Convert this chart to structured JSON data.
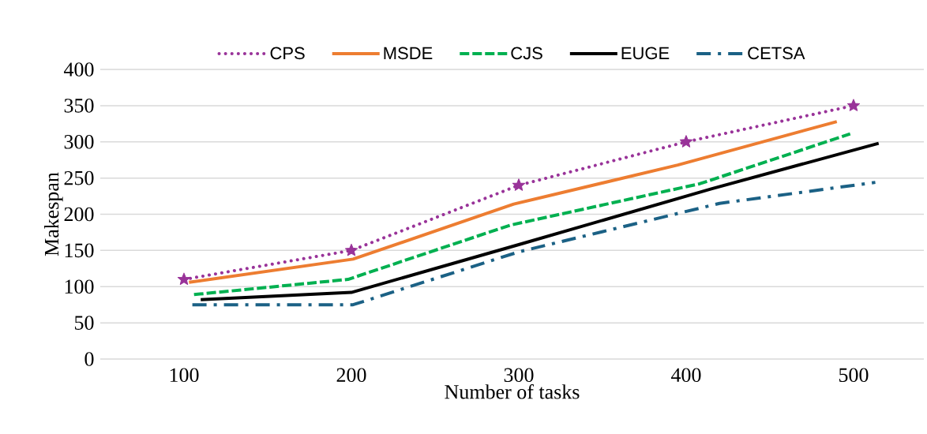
{
  "chart_data": {
    "type": "line",
    "xlabel": "Number of tasks",
    "ylabel": "Makespan",
    "xlim": [
      50,
      542
    ],
    "xticks": [
      100,
      200,
      300,
      400,
      500
    ],
    "ylim": [
      0,
      400
    ],
    "yticks": [
      0,
      50,
      100,
      150,
      200,
      250,
      300,
      350,
      400
    ],
    "grid": "y",
    "legend": "top",
    "series": [
      {
        "name": "CPS",
        "color": "#993399",
        "marker": "star",
        "line_style": "dotted",
        "x": [
          100,
          200,
          300,
          400,
          500
        ],
        "values": [
          110,
          150,
          240,
          300,
          350
        ]
      },
      {
        "name": "MSDE",
        "color": "#ed7d31",
        "line_style": "solid",
        "x": [
          103,
          201,
          297,
          395,
          490
        ],
        "values": [
          106,
          138,
          214,
          268,
          328
        ]
      },
      {
        "name": "CJS",
        "color": "#00b050",
        "line_style": "dashed",
        "x": [
          106,
          198,
          295,
          408,
          498
        ],
        "values": [
          89,
          110,
          185,
          242,
          311
        ]
      },
      {
        "name": "EUGE",
        "color": "#000000",
        "line_style": "solid",
        "x": [
          110,
          200,
          300,
          415,
          515
        ],
        "values": [
          82,
          92,
          158,
          235,
          298
        ]
      },
      {
        "name": "CETSA",
        "color": "#1b6185",
        "line_style": "dashdot",
        "x": [
          105,
          201,
          300,
          420,
          513
        ],
        "values": [
          75,
          75,
          148,
          215,
          244
        ]
      }
    ]
  }
}
